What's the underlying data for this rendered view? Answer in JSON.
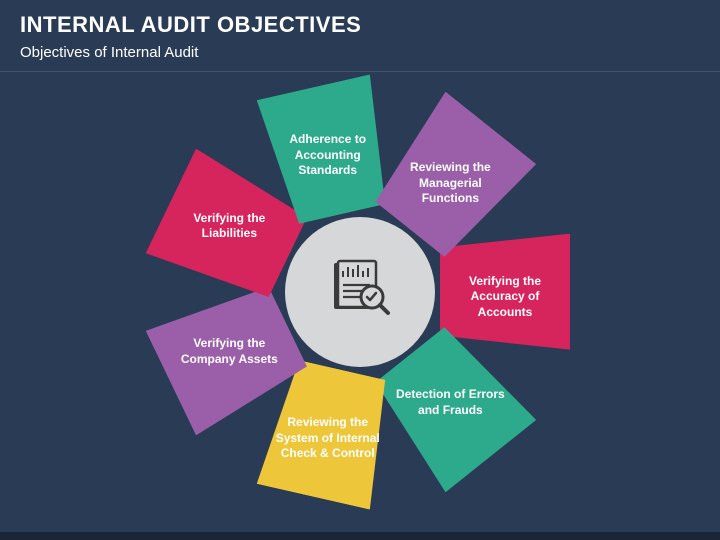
{
  "header": {
    "title": "INTERNAL AUDIT OBJECTIVES",
    "subtitle": "Objectives of Internal Audit"
  },
  "chart": {
    "type": "radial-segments",
    "background_color": "#2a3b55",
    "center_circle_color": "#d6d7d8",
    "icon_color": "#3a3a3a",
    "text_color": "#ffffff",
    "label_fontsize": 12,
    "segments": [
      {
        "label": "Verifying the Accuracy of Accounts",
        "color": "#d6245d",
        "angle": 0
      },
      {
        "label": "Detection of Errors and Frauds",
        "color": "#2da98b",
        "angle": 51.43
      },
      {
        "label": "Reviewing the System of Internal Check & Control",
        "color": "#eec63a",
        "angle": 102.86
      },
      {
        "label": "Verifying the Company Assets",
        "color": "#9a5fa8",
        "angle": 154.29
      },
      {
        "label": "Verifying the Liabilities",
        "color": "#d6245d",
        "angle": 205.71
      },
      {
        "label": "Adherence to Accounting Standards",
        "color": "#2da98b",
        "angle": 257.14
      },
      {
        "label": "Reviewing the Managerial Functions",
        "color": "#9a5fa8",
        "angle": 308.57
      }
    ]
  }
}
